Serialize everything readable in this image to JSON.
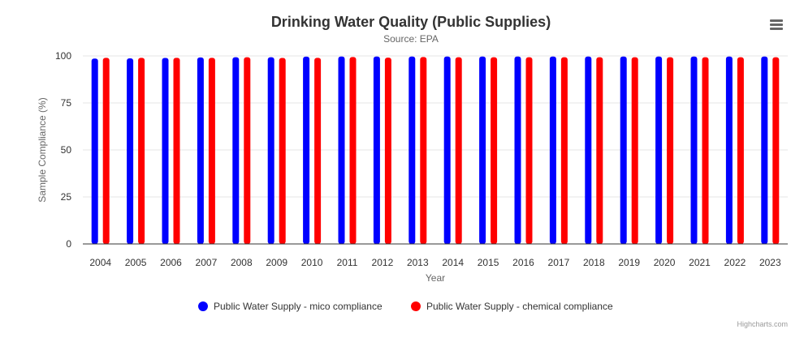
{
  "chart_data": {
    "type": "bar",
    "title": "Drinking Water Quality (Public Supplies)",
    "subtitle": "Source: EPA",
    "xlabel": "Year",
    "ylabel": "Sample Compliance (%)",
    "ylim": [
      0,
      100
    ],
    "yticks": [
      0,
      25,
      50,
      75,
      100
    ],
    "categories": [
      "2004",
      "2005",
      "2006",
      "2007",
      "2008",
      "2009",
      "2010",
      "2011",
      "2012",
      "2013",
      "2014",
      "2015",
      "2016",
      "2017",
      "2018",
      "2019",
      "2020",
      "2021",
      "2022",
      "2023"
    ],
    "series": [
      {
        "name": "Public Water Supply - mico compliance",
        "color": "#0000ff",
        "values": [
          98.6,
          98.7,
          98.9,
          99.2,
          99.3,
          99.3,
          99.6,
          99.7,
          99.7,
          99.7,
          99.7,
          99.7,
          99.7,
          99.7,
          99.7,
          99.7,
          99.7,
          99.7,
          99.7,
          99.7
        ]
      },
      {
        "name": "Public Water Supply - chemical compliance",
        "color": "#ff0000",
        "values": [
          99.0,
          99.0,
          99.0,
          99.0,
          99.3,
          98.9,
          99.0,
          99.4,
          99.1,
          99.4,
          99.3,
          99.3,
          99.3,
          99.3,
          99.3,
          99.3,
          99.3,
          99.3,
          99.3,
          99.3
        ]
      }
    ],
    "legend_position": "bottom-center",
    "grid": true,
    "credits": "Highcharts.com"
  },
  "menu_icon": "hamburger-menu-icon"
}
